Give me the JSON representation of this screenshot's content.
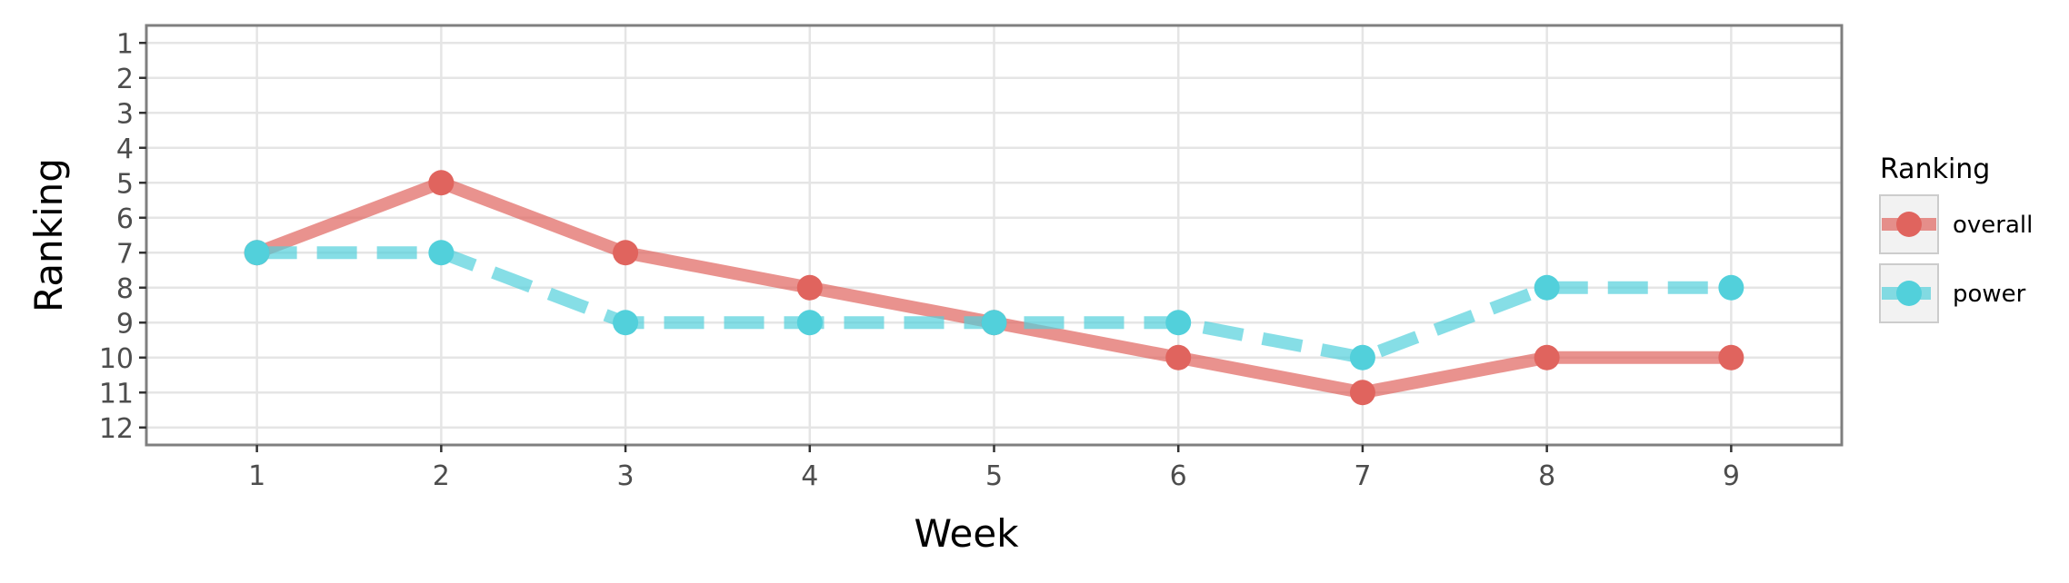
{
  "chart_data": {
    "type": "line",
    "x": [
      1,
      2,
      3,
      4,
      5,
      6,
      7,
      8,
      9
    ],
    "x_ticks": [
      "1",
      "2",
      "3",
      "4",
      "5",
      "6",
      "7",
      "8",
      "9"
    ],
    "y_ticks": [
      "1",
      "2",
      "3",
      "4",
      "5",
      "6",
      "7",
      "8",
      "9",
      "10",
      "11",
      "12"
    ],
    "xlabel": "Week",
    "ylabel": "Ranking",
    "xlim": [
      0.4,
      9.6
    ],
    "ylim": [
      12.5,
      0.5
    ],
    "y_reversed": true,
    "grid": true,
    "legend": {
      "title": "Ranking",
      "placement": "right"
    },
    "series": [
      {
        "name": "overall",
        "values": [
          7,
          5,
          7,
          8,
          9,
          10,
          11,
          10,
          10
        ],
        "color": "#E0645E",
        "line_style": "solid"
      },
      {
        "name": "power",
        "values": [
          7,
          7,
          9,
          9,
          9,
          9,
          10,
          8,
          8
        ],
        "color": "#52D0DB",
        "line_style": "dashed"
      }
    ]
  }
}
